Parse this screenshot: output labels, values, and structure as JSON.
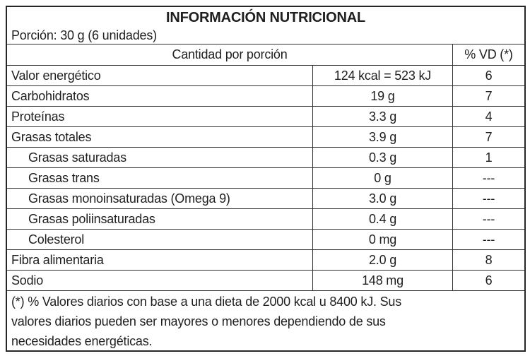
{
  "table": {
    "title": "INFORMACIÓN NUTRICIONAL",
    "portion": "Porción: 30 g (6 unidades)",
    "columns": {
      "amount_header": "Cantidad por porción",
      "vd_header": "% VD (*)"
    },
    "rows": [
      {
        "name": "Valor energético",
        "amount": "124 kcal = 523 kJ",
        "vd": "6",
        "indent": false
      },
      {
        "name": "Carbohidratos",
        "amount": "19 g",
        "vd": "7",
        "indent": false
      },
      {
        "name": "Proteínas",
        "amount": "3.3 g",
        "vd": "4",
        "indent": false
      },
      {
        "name": "Grasas totales",
        "amount": "3.9 g",
        "vd": "7",
        "indent": false
      },
      {
        "name": "Grasas saturadas",
        "amount": "0.3 g",
        "vd": "1",
        "indent": true
      },
      {
        "name": "Grasas trans",
        "amount": "0 g",
        "vd": "---",
        "indent": true
      },
      {
        "name": "Grasas monoinsaturadas (Omega 9)",
        "amount": "3.0 g",
        "vd": "---",
        "indent": true
      },
      {
        "name": "Grasas poliinsaturadas",
        "amount": "0.4 g",
        "vd": "---",
        "indent": true
      },
      {
        "name": "Colesterol",
        "amount": "0 mg",
        "vd": "---",
        "indent": true
      },
      {
        "name": "Fibra alimentaria",
        "amount": "2.0 g",
        "vd": "8",
        "indent": false
      },
      {
        "name": "Sodio",
        "amount": "148 mg",
        "vd": "6",
        "indent": false
      }
    ],
    "footnote_lines": [
      "(*) % Valores diarios con base a una dieta de 2000 kcal u 8400 kJ. Sus",
      "valores diarios pueden ser mayores o menores dependiendo de sus",
      "necesidades energéticas."
    ],
    "footnote_full": "(*) % Valores diarios con base a una dieta de 2000 kcal u 8400 kJ. Sus valores diarios pueden ser mayores o menores dependiendo de sus necesidades energéticas.",
    "colors": {
      "border": "#262626",
      "grid": "#303030",
      "text": "#1f1f1f",
      "background": "#ffffff"
    }
  }
}
